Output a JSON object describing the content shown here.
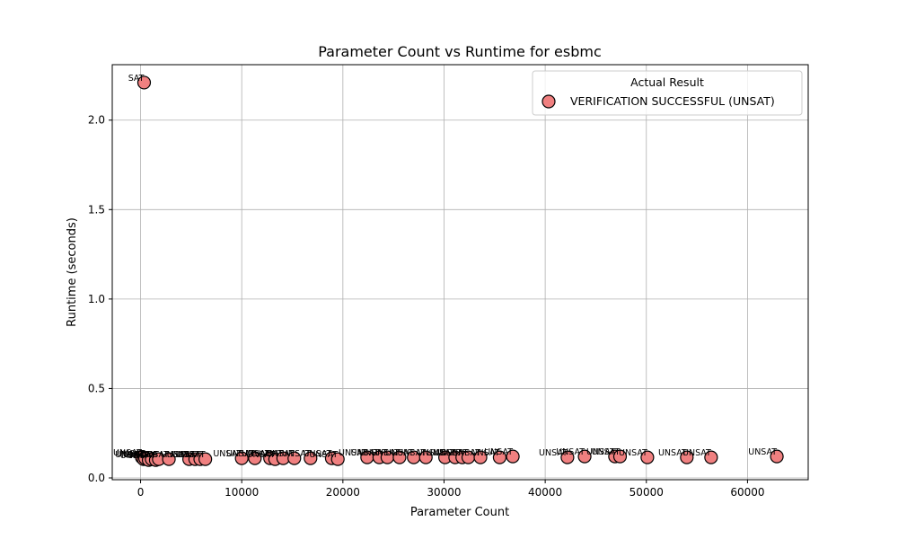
{
  "chart_data": {
    "type": "scatter",
    "title": "Parameter Count vs Runtime for esbmc",
    "xlabel": "Parameter Count",
    "ylabel": "Runtime (seconds)",
    "xlim": [
      -2800,
      66000
    ],
    "ylim": [
      -0.01,
      2.31
    ],
    "xticks": [
      0,
      10000,
      20000,
      30000,
      40000,
      50000,
      60000
    ],
    "xtick_labels": [
      "0",
      "10000",
      "20000",
      "30000",
      "40000",
      "50000",
      "60000"
    ],
    "yticks": [
      0.0,
      0.5,
      1.0,
      1.5,
      2.0
    ],
    "ytick_labels": [
      "0.0",
      "0.5",
      "1.0",
      "1.5",
      "2.0"
    ],
    "grid": true,
    "legend": {
      "title": "Actual Result",
      "placement": "top-right",
      "entries": [
        "VERIFICATION SUCCESSFUL (UNSAT)"
      ]
    },
    "marker_color": "#f08080",
    "marker_edge": "#000000",
    "series": [
      {
        "name": "VERIFICATION SUCCESSFUL (UNSAT)",
        "points": [
          {
            "x": 350,
            "y": 2.21,
            "label": "SAT"
          },
          {
            "x": 120,
            "y": 0.115,
            "label": "UNSAT"
          },
          {
            "x": 300,
            "y": 0.105,
            "label": "UNSAT"
          },
          {
            "x": 450,
            "y": 0.11,
            "label": "UNSAT"
          },
          {
            "x": 800,
            "y": 0.1,
            "label": "UNSAT"
          },
          {
            "x": 1100,
            "y": 0.105,
            "label": "UNSAT"
          },
          {
            "x": 1500,
            "y": 0.1,
            "label": "UNSAT"
          },
          {
            "x": 1800,
            "y": 0.105,
            "label": "UNSAT"
          },
          {
            "x": 2800,
            "y": 0.105,
            "label": "UNSAT"
          },
          {
            "x": 4800,
            "y": 0.105,
            "label": "UNSAT"
          },
          {
            "x": 5400,
            "y": 0.105,
            "label": "UNSAT"
          },
          {
            "x": 5900,
            "y": 0.105,
            "label": "UNSAT"
          },
          {
            "x": 6400,
            "y": 0.105,
            "label": "UNSAT"
          },
          {
            "x": 10000,
            "y": 0.11,
            "label": "UNSAT"
          },
          {
            "x": 11300,
            "y": 0.11,
            "label": "UNSAT"
          },
          {
            "x": 12800,
            "y": 0.11,
            "label": "UNSAT"
          },
          {
            "x": 13300,
            "y": 0.105,
            "label": "UNSAT"
          },
          {
            "x": 14100,
            "y": 0.11,
            "label": "UNSAT"
          },
          {
            "x": 15200,
            "y": 0.11,
            "label": "UNSAT"
          },
          {
            "x": 16800,
            "y": 0.11,
            "label": "UNSAT"
          },
          {
            "x": 18900,
            "y": 0.11,
            "label": "UNSAT"
          },
          {
            "x": 19500,
            "y": 0.105,
            "label": "UNSAT"
          },
          {
            "x": 22400,
            "y": 0.115,
            "label": "UNSAT"
          },
          {
            "x": 23600,
            "y": 0.115,
            "label": "UNSAT"
          },
          {
            "x": 24400,
            "y": 0.115,
            "label": "UNSAT"
          },
          {
            "x": 25600,
            "y": 0.115,
            "label": "UNSAT"
          },
          {
            "x": 27000,
            "y": 0.115,
            "label": "UNSAT"
          },
          {
            "x": 28200,
            "y": 0.115,
            "label": "UNSAT"
          },
          {
            "x": 30100,
            "y": 0.115,
            "label": "UNSAT"
          },
          {
            "x": 31100,
            "y": 0.115,
            "label": "UNSAT"
          },
          {
            "x": 31800,
            "y": 0.115,
            "label": "UNSAT"
          },
          {
            "x": 32400,
            "y": 0.115,
            "label": "UNSAT"
          },
          {
            "x": 33600,
            "y": 0.115,
            "label": "UNSAT"
          },
          {
            "x": 35500,
            "y": 0.115,
            "label": "UNSAT"
          },
          {
            "x": 36800,
            "y": 0.12,
            "label": "UNSAT"
          },
          {
            "x": 42200,
            "y": 0.115,
            "label": "UNSAT"
          },
          {
            "x": 43900,
            "y": 0.12,
            "label": "UNSAT"
          },
          {
            "x": 46900,
            "y": 0.12,
            "label": "UNSAT"
          },
          {
            "x": 47400,
            "y": 0.12,
            "label": "UNSAT"
          },
          {
            "x": 50100,
            "y": 0.115,
            "label": "UNSAT"
          },
          {
            "x": 54000,
            "y": 0.115,
            "label": "UNSAT"
          },
          {
            "x": 56400,
            "y": 0.115,
            "label": "UNSAT"
          },
          {
            "x": 62900,
            "y": 0.12,
            "label": "UNSAT"
          }
        ]
      }
    ]
  }
}
